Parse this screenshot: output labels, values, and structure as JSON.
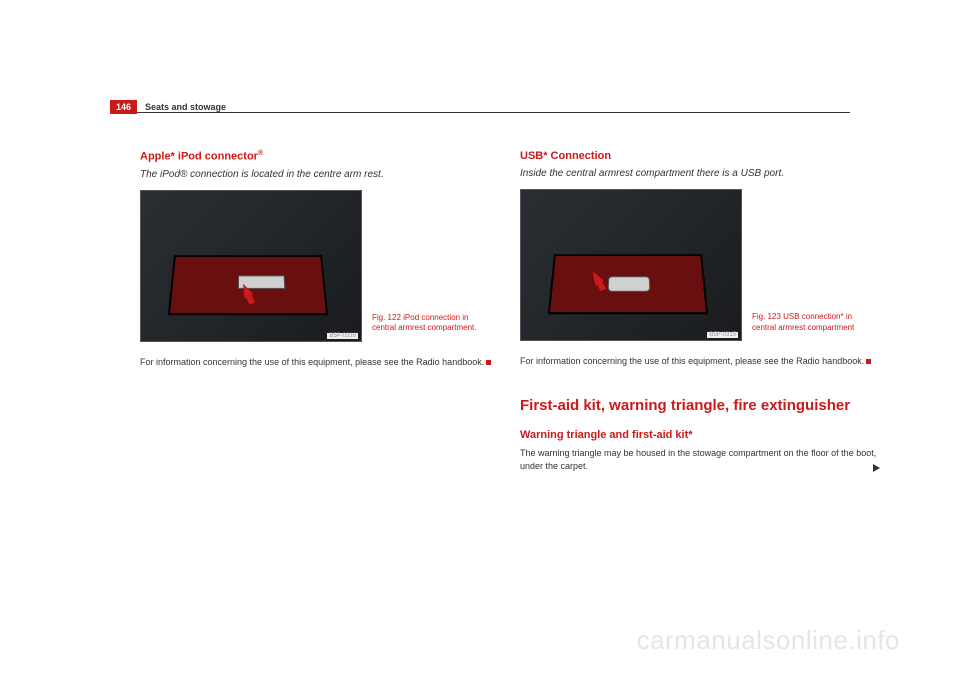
{
  "page": {
    "number": "146",
    "chapter": "Seats and stowage"
  },
  "left": {
    "heading_html": "Apple* iPod connector",
    "heading_sup": "®",
    "subtitle_html": "The iPod® connection is located in the centre arm rest.",
    "figure": {
      "code": "B5P-0316",
      "caption": "Fig. 122   iPod connection in central armrest compartment.",
      "arrow_color": "#cc1919",
      "compartment_color": "#6a0f0f"
    },
    "body": "For information concerning the use of this equipment, please see the Radio handbook."
  },
  "right": {
    "heading": "USB* Connection",
    "subtitle": "Inside the central armrest compartment there is a USB port.",
    "figure": {
      "code": "B5P-0315",
      "caption": "Fig. 123   USB connection* in central armrest compartment",
      "arrow_color": "#cc1919",
      "compartment_color": "#6a0f0f"
    },
    "body": "For information concerning the use of this equipment, please see the Radio handbook.",
    "major_heading": "First-aid kit, warning triangle, fire extinguisher",
    "sub_heading": "Warning triangle and first-aid kit*",
    "sub_body": "The warning triangle may be housed in the stowage compartment on the floor of the boot, under the carpet."
  },
  "watermark": "carmanualsonline.info",
  "colors": {
    "accent": "#cc1919",
    "text": "#333333",
    "bg": "#ffffff"
  }
}
